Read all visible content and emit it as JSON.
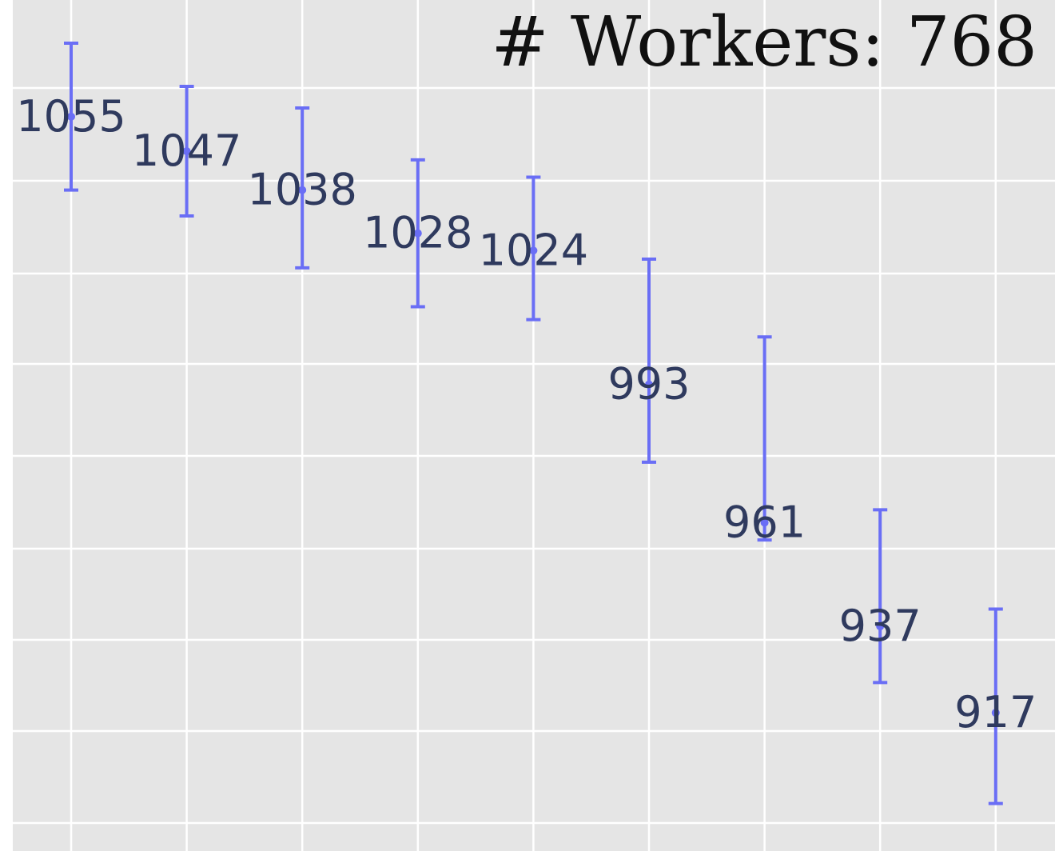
{
  "chart_data": {
    "type": "scatter",
    "title": "# Workers: 768",
    "xlabel": "",
    "ylabel": "",
    "grid": true,
    "colors": {
      "panel_background": "#e5e5e5",
      "grid_line": "#ffffff",
      "error_bar": "#6a6ef5",
      "label_text": "#2f3a5e"
    },
    "points": [
      {
        "label": "1055",
        "y": 1055,
        "err_low": 1038,
        "err_high": 1072
      },
      {
        "label": "1047",
        "y": 1047,
        "err_low": 1032,
        "err_high": 1062
      },
      {
        "label": "1038",
        "y": 1038,
        "err_low": 1020,
        "err_high": 1057
      },
      {
        "label": "1028",
        "y": 1028,
        "err_low": 1011,
        "err_high": 1045
      },
      {
        "label": "1024",
        "y": 1024,
        "err_low": 1008,
        "err_high": 1041
      },
      {
        "label": "993",
        "y": 993,
        "err_low": 975,
        "err_high": 1022
      },
      {
        "label": "961",
        "y": 961,
        "err_low": 957,
        "err_high": 1004
      },
      {
        "label": "937",
        "y": 937,
        "err_low": 924,
        "err_high": 964
      },
      {
        "label": "917",
        "y": 917,
        "err_low": 896,
        "err_high": 941
      }
    ],
    "ylim": [
      885,
      1082
    ]
  }
}
